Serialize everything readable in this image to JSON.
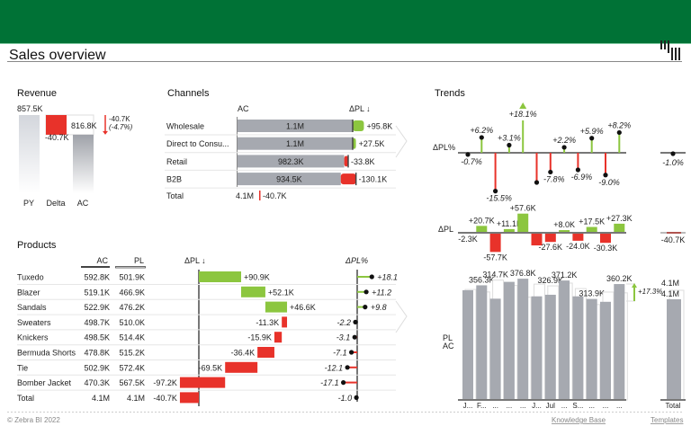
{
  "header": {
    "title": "Sales overview",
    "logo": "Zebra BI logo"
  },
  "colors": {
    "brand": "#007236",
    "positive": "#8cc63f",
    "negative": "#e8322a",
    "ac": "#a6a9b0",
    "pl": "#e2e3e6",
    "axis": "#777777"
  },
  "revenue": {
    "title": "Revenue",
    "categories": [
      "PY",
      "Delta",
      "AC"
    ],
    "py": 857.5,
    "py_label": "857.5K",
    "delta": -40.7,
    "delta_label": "-40.7K",
    "ac": 816.8,
    "ac_label": "816.8K",
    "variance_abs": "-40.7K",
    "variance_pct": "(-4.7%)"
  },
  "channels": {
    "title": "Channels",
    "col_ac": "AC",
    "col_dpl": "ΔPL ↓",
    "rows": [
      {
        "name": "Wholesale",
        "ac": 1100,
        "ac_label": "1.1M",
        "dpl": 95.8,
        "dpl_label": "+95.8K"
      },
      {
        "name": "Direct to Consu...",
        "ac": 1100,
        "ac_label": "1.1M",
        "dpl": 27.5,
        "dpl_label": "+27.5K"
      },
      {
        "name": "Retail",
        "ac": 982.3,
        "ac_label": "982.3K",
        "dpl": -33.8,
        "dpl_label": "-33.8K"
      },
      {
        "name": "B2B",
        "ac": 934.5,
        "ac_label": "934.5K",
        "dpl": -130.1,
        "dpl_label": "-130.1K"
      }
    ],
    "total": {
      "name": "Total",
      "ac_label": "4.1M",
      "dpl_label": "-40.7K"
    }
  },
  "products": {
    "title": "Products",
    "col_ac": "AC",
    "col_pl": "PL",
    "col_dpl": "ΔPL ↓",
    "col_dpl_pct": "ΔPL%",
    "rows": [
      {
        "name": "Tuxedo",
        "ac": "592.8K",
        "pl": "501.9K",
        "dpl": 90.9,
        "dpl_label": "+90.9K",
        "pct": 18.1,
        "pct_label": "+18.1"
      },
      {
        "name": "Blazer",
        "ac": "519.1K",
        "pl": "466.9K",
        "dpl": 52.1,
        "dpl_label": "+52.1K",
        "pct": 11.2,
        "pct_label": "+11.2"
      },
      {
        "name": "Sandals",
        "ac": "522.9K",
        "pl": "476.2K",
        "dpl": 46.6,
        "dpl_label": "+46.6K",
        "pct": 9.8,
        "pct_label": "+9.8"
      },
      {
        "name": "Sweaters",
        "ac": "498.7K",
        "pl": "510.0K",
        "dpl": -11.3,
        "dpl_label": "-11.3K",
        "pct": -2.2,
        "pct_label": "-2.2"
      },
      {
        "name": "Knickers",
        "ac": "498.5K",
        "pl": "514.4K",
        "dpl": -15.9,
        "dpl_label": "-15.9K",
        "pct": -3.1,
        "pct_label": "-3.1"
      },
      {
        "name": "Bermuda Shorts",
        "ac": "478.8K",
        "pl": "515.2K",
        "dpl": -36.4,
        "dpl_label": "-36.4K",
        "pct": -7.1,
        "pct_label": "-7.1"
      },
      {
        "name": "Tie",
        "ac": "502.9K",
        "pl": "572.4K",
        "dpl": -69.5,
        "dpl_label": "-69.5K",
        "pct": -12.1,
        "pct_label": "-12.1"
      },
      {
        "name": "Bomber Jacket",
        "ac": "470.3K",
        "pl": "567.5K",
        "dpl": -97.2,
        "dpl_label": "-97.2K",
        "pct": -17.1,
        "pct_label": "-17.1"
      }
    ],
    "total": {
      "name": "Total",
      "ac": "4.1M",
      "pl": "4.1M",
      "dpl": -40.7,
      "dpl_label": "-40.7K",
      "pct": -1.0,
      "pct_label": "-1.0"
    }
  },
  "trends": {
    "title": "Trends",
    "label_dpl_pct": "ΔPL%",
    "label_dpl": "ΔPL",
    "label_pl": "PL",
    "label_ac": "AC",
    "months": [
      "J...",
      "F...",
      "...",
      "...",
      "...",
      "J...",
      "Jul",
      "...",
      "S...",
      "...",
      "...",
      "..."
    ],
    "dpl_pct": [
      -0.7,
      6.2,
      -15.5,
      3.1,
      18.1,
      -12.0,
      -7.8,
      2.2,
      -6.9,
      5.9,
      -9.0,
      8.2
    ],
    "dpl_pct_labels": [
      "-0.7%",
      "+6.2%",
      "-15.5%",
      "+3.1%",
      "+18.1%",
      "",
      "-7.8%",
      "+2.2%",
      "-6.9%",
      "+5.9%",
      "-9.0%",
      "+8.2%"
    ],
    "dpl": [
      -2.3,
      20.7,
      -57.7,
      11.1,
      57.6,
      -38.0,
      -27.6,
      8.0,
      -24.0,
      17.5,
      -30.3,
      27.3
    ],
    "dpl_labels": [
      "-2.3K",
      "+20.7K",
      "-57.7K",
      "+11.1K",
      "+57.6K",
      "",
      "-27.6K",
      "+8.0K",
      "-24.0K",
      "+17.5K",
      "-30.3K",
      "+27.3K"
    ],
    "ac": [
      341,
      356.3,
      314.7,
      367,
      376.8,
      322,
      326.9,
      371.2,
      322,
      313.9,
      305,
      360.2
    ],
    "pl": [
      343.3,
      335.6,
      372.4,
      355.9,
      319.2,
      360,
      354.5,
      363.2,
      346,
      296.4,
      335.3,
      332.9
    ],
    "ac_labels": [
      "",
      "356.3K",
      "314.7K",
      "",
      "376.8K",
      "",
      "326.9K",
      "371.2K",
      "",
      "313.9K",
      "",
      "360.2K"
    ],
    "variance_label": "+17.3%",
    "total": {
      "label": "Total",
      "dpl_pct_label": "-1.0%",
      "dpl_label": "-40.7K",
      "pl_label": "4.1M",
      "ac_label": "4.1M"
    }
  },
  "footer": {
    "copyright": "© Zebra BI 2022",
    "knowledge_base": "Knowledge Base",
    "templates": "Templates"
  }
}
